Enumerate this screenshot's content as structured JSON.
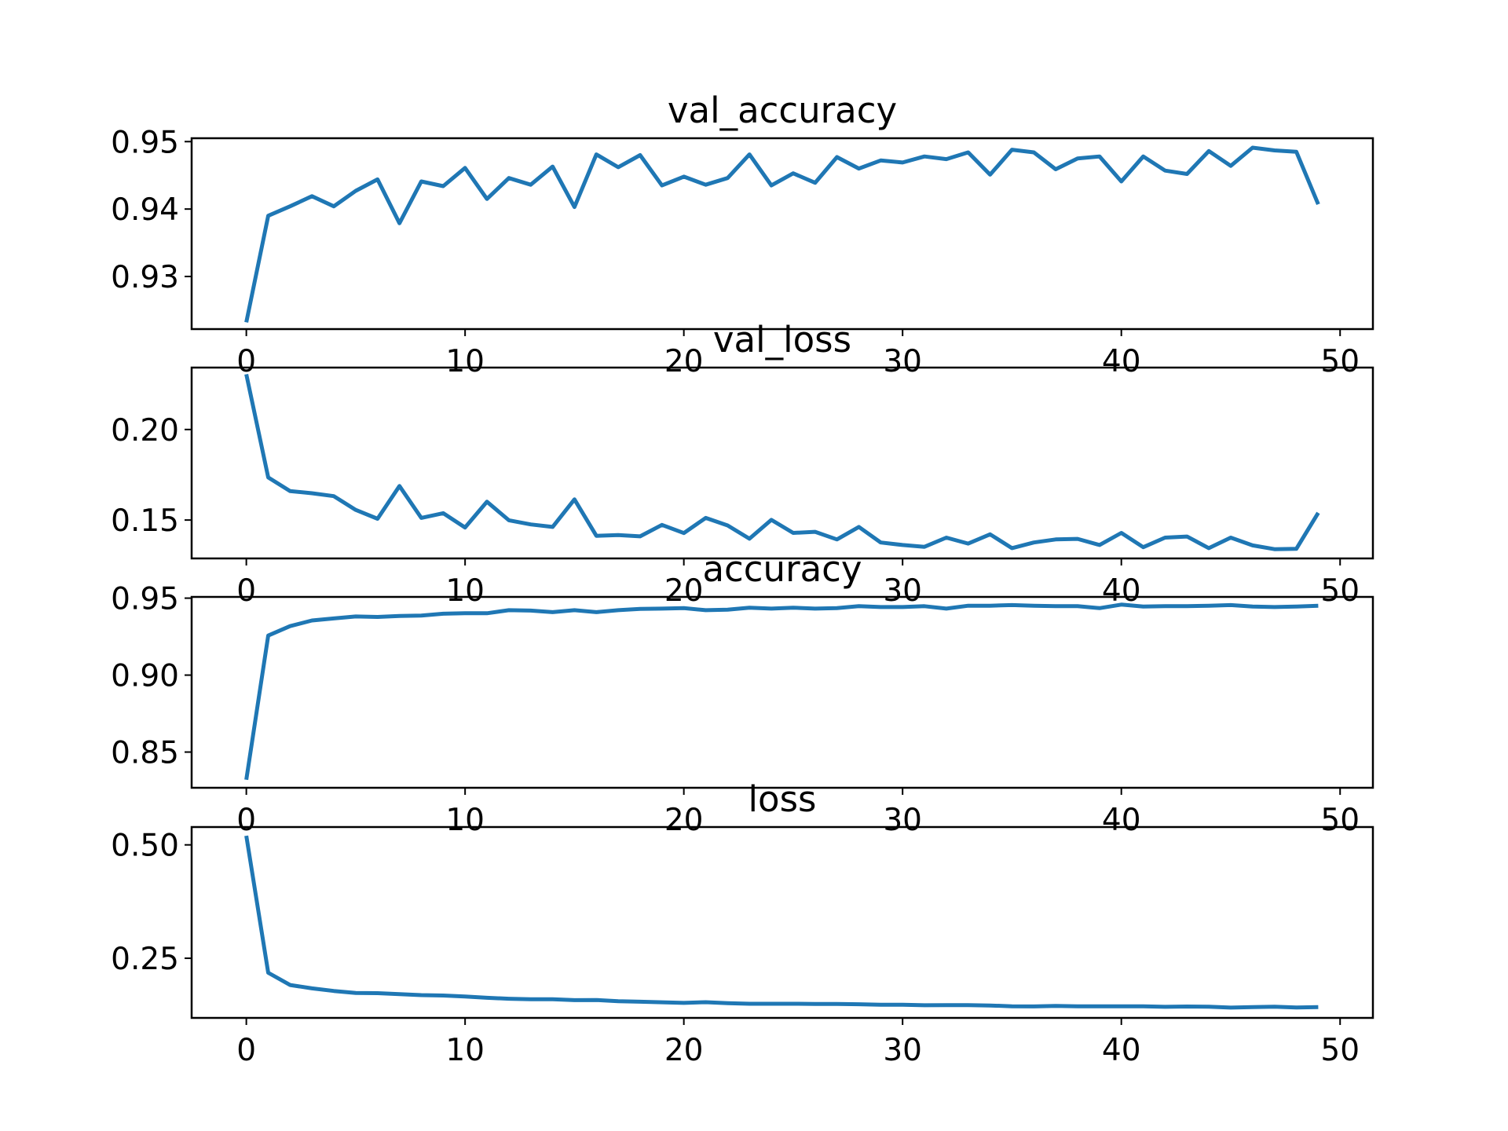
{
  "series_color": "#1f77b4",
  "chart_data": [
    {
      "type": "line",
      "title": "val_accuracy",
      "x": [
        0,
        1,
        2,
        3,
        4,
        5,
        6,
        7,
        8,
        9,
        10,
        11,
        12,
        13,
        14,
        15,
        16,
        17,
        18,
        19,
        20,
        21,
        22,
        23,
        24,
        25,
        26,
        27,
        28,
        29,
        30,
        31,
        32,
        33,
        34,
        35,
        36,
        37,
        38,
        39,
        40,
        41,
        42,
        43,
        44,
        45,
        46,
        47,
        48,
        49
      ],
      "values": [
        0.9232,
        0.939,
        0.9404,
        0.9419,
        0.9404,
        0.9427,
        0.9444,
        0.9379,
        0.9441,
        0.9434,
        0.9461,
        0.9415,
        0.9446,
        0.9436,
        0.9463,
        0.9403,
        0.9481,
        0.9462,
        0.948,
        0.9435,
        0.9448,
        0.9436,
        0.9446,
        0.9481,
        0.9435,
        0.9453,
        0.9439,
        0.9477,
        0.946,
        0.9472,
        0.9469,
        0.9478,
        0.9474,
        0.9484,
        0.9451,
        0.9488,
        0.9484,
        0.9459,
        0.9475,
        0.9478,
        0.9441,
        0.9478,
        0.9457,
        0.9452,
        0.9486,
        0.9464,
        0.9491,
        0.9487,
        0.9485,
        0.9407
      ],
      "xlim": [
        -2.5,
        51.5
      ],
      "ylim": [
        0.9222,
        0.9505
      ],
      "xticks": [
        0,
        10,
        20,
        30,
        40,
        50
      ],
      "yticks": [
        0.93,
        0.94,
        0.95
      ],
      "ytick_labels": [
        "0.93",
        "0.94",
        "0.95"
      ]
    },
    {
      "type": "line",
      "title": "val_loss",
      "x": [
        0,
        1,
        2,
        3,
        4,
        5,
        6,
        7,
        8,
        9,
        10,
        11,
        12,
        13,
        14,
        15,
        16,
        17,
        18,
        19,
        20,
        21,
        22,
        23,
        24,
        25,
        26,
        27,
        28,
        29,
        30,
        31,
        32,
        33,
        34,
        35,
        36,
        37,
        38,
        39,
        40,
        41,
        42,
        43,
        44,
        45,
        46,
        47,
        48,
        49
      ],
      "values": [
        0.2305,
        0.1735,
        0.166,
        0.1648,
        0.1632,
        0.1556,
        0.1507,
        0.1688,
        0.1512,
        0.1538,
        0.1459,
        0.1601,
        0.1499,
        0.1476,
        0.1462,
        0.1614,
        0.1413,
        0.1417,
        0.141,
        0.1473,
        0.1428,
        0.1512,
        0.147,
        0.1397,
        0.1501,
        0.1429,
        0.1435,
        0.1393,
        0.1462,
        0.1376,
        0.1362,
        0.1352,
        0.1403,
        0.137,
        0.1421,
        0.1345,
        0.1376,
        0.1393,
        0.1396,
        0.1362,
        0.1429,
        0.135,
        0.1403,
        0.1409,
        0.1345,
        0.1403,
        0.136,
        0.1339,
        0.1341,
        0.154
      ],
      "xlim": [
        -2.5,
        51.5
      ],
      "ylim": [
        0.1288,
        0.2342
      ],
      "xticks": [
        0,
        10,
        20,
        30,
        40,
        50
      ],
      "yticks": [
        0.15,
        0.2
      ],
      "ytick_labels": [
        "0.15",
        "0.20"
      ]
    },
    {
      "type": "line",
      "title": "accuracy",
      "x": [
        0,
        1,
        2,
        3,
        4,
        5,
        6,
        7,
        8,
        9,
        10,
        11,
        12,
        13,
        14,
        15,
        16,
        17,
        18,
        19,
        20,
        21,
        22,
        23,
        24,
        25,
        26,
        27,
        28,
        29,
        30,
        31,
        32,
        33,
        34,
        35,
        36,
        37,
        38,
        39,
        40,
        41,
        42,
        43,
        44,
        45,
        46,
        47,
        48,
        49
      ],
      "values": [
        0.832,
        0.9257,
        0.9318,
        0.9355,
        0.9368,
        0.9381,
        0.9378,
        0.9384,
        0.9387,
        0.9399,
        0.9402,
        0.9402,
        0.9422,
        0.9419,
        0.9409,
        0.9422,
        0.9409,
        0.9422,
        0.943,
        0.9432,
        0.9435,
        0.9422,
        0.9425,
        0.9438,
        0.9432,
        0.9438,
        0.9432,
        0.9435,
        0.9448,
        0.9442,
        0.9442,
        0.9448,
        0.9432,
        0.9451,
        0.9451,
        0.9455,
        0.9451,
        0.9448,
        0.9448,
        0.9435,
        0.9458,
        0.9445,
        0.9448,
        0.9448,
        0.9451,
        0.9455,
        0.9445,
        0.9442,
        0.9445,
        0.9451
      ],
      "xlim": [
        -2.5,
        51.5
      ],
      "ylim": [
        0.8268,
        0.9508
      ],
      "xticks": [
        0,
        10,
        20,
        30,
        40,
        50
      ],
      "yticks": [
        0.85,
        0.9,
        0.95
      ],
      "ytick_labels": [
        "0.85",
        "0.90",
        "0.95"
      ]
    },
    {
      "type": "line",
      "title": "loss",
      "x": [
        0,
        1,
        2,
        3,
        4,
        5,
        6,
        7,
        8,
        9,
        10,
        11,
        12,
        13,
        14,
        15,
        16,
        17,
        18,
        19,
        20,
        21,
        22,
        23,
        24,
        25,
        26,
        27,
        28,
        29,
        30,
        31,
        32,
        33,
        34,
        35,
        36,
        37,
        38,
        39,
        40,
        41,
        42,
        43,
        44,
        45,
        46,
        47,
        48,
        49
      ],
      "values": [
        0.52,
        0.218,
        0.191,
        0.1836,
        0.1779,
        0.1736,
        0.1731,
        0.171,
        0.1688,
        0.1678,
        0.1657,
        0.1629,
        0.1608,
        0.1597,
        0.1597,
        0.1576,
        0.158,
        0.1554,
        0.1541,
        0.153,
        0.1516,
        0.1532,
        0.151,
        0.1497,
        0.1496,
        0.1496,
        0.1494,
        0.1491,
        0.1486,
        0.1475,
        0.1474,
        0.1463,
        0.1467,
        0.1465,
        0.1459,
        0.1441,
        0.1438,
        0.1449,
        0.1442,
        0.1442,
        0.144,
        0.1442,
        0.143,
        0.1436,
        0.1431,
        0.1412,
        0.1423,
        0.1433,
        0.1413,
        0.1424
      ],
      "xlim": [
        -2.5,
        51.5
      ],
      "ylim": [
        0.1185,
        0.5393
      ],
      "xticks": [
        0,
        10,
        20,
        30,
        40,
        50
      ],
      "yticks": [
        0.25,
        0.5
      ],
      "ytick_labels": [
        "0.25",
        "0.50"
      ]
    }
  ]
}
